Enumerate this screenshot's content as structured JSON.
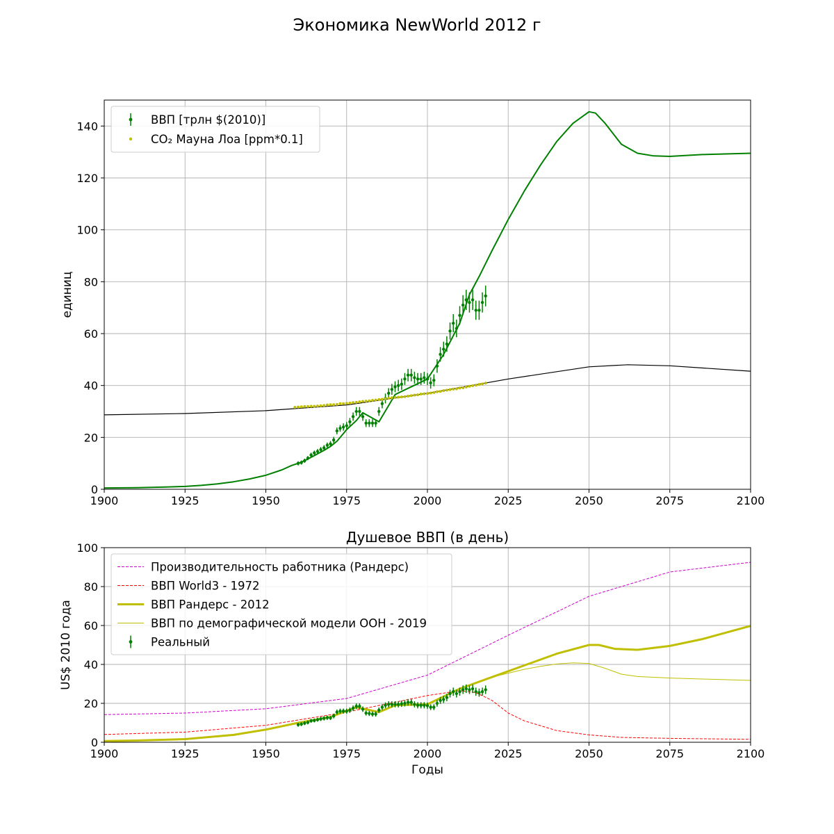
{
  "figure": {
    "title": "Экономика NewWorld 2012 г"
  },
  "chart_data": [
    {
      "type": "line",
      "title": "",
      "xlabel": "",
      "ylabel": "единиц",
      "xlim": [
        1900,
        2100
      ],
      "ylim": [
        0,
        150
      ],
      "xticks": [
        1900,
        1925,
        1950,
        1975,
        2000,
        2025,
        2050,
        2075,
        2100
      ],
      "yticks": [
        0,
        20,
        40,
        60,
        80,
        100,
        120,
        140
      ],
      "grid": true,
      "legend_position": "top-left",
      "series": [
        {
          "name": "",
          "kind": "line",
          "color": "#008000",
          "width": 2,
          "x": [
            1900,
            1910,
            1920,
            1925,
            1930,
            1935,
            1940,
            1945,
            1950,
            1955,
            1958,
            1960,
            1962,
            1965,
            1968,
            1970,
            1972,
            1975,
            1978,
            1980,
            1985,
            1990,
            2000,
            2005,
            2010,
            2013,
            2016,
            2020,
            2025,
            2030,
            2035,
            2040,
            2045,
            2050,
            2052,
            2055,
            2060,
            2065,
            2070,
            2075,
            2085,
            2100
          ],
          "y": [
            0.5,
            0.6,
            0.9,
            1.1,
            1.5,
            2.1,
            2.9,
            4.0,
            5.4,
            7.5,
            9.2,
            10.0,
            11.0,
            13.0,
            15.0,
            16.5,
            18.5,
            23.0,
            26.5,
            29.5,
            26.0,
            36.5,
            42.5,
            52.0,
            64.0,
            75.0,
            82.0,
            92.0,
            104.0,
            115.0,
            125.0,
            134.0,
            141.0,
            145.5,
            145.0,
            141.0,
            133.0,
            129.5,
            128.5,
            128.3,
            129.0,
            129.5
          ]
        },
        {
          "name": "",
          "kind": "line",
          "color": "#000000",
          "width": 1.2,
          "x": [
            1900,
            1925,
            1950,
            1975,
            2000,
            2025,
            2050,
            2062,
            2075,
            2100
          ],
          "y": [
            28.7,
            29.2,
            30.3,
            32.5,
            37.0,
            42.5,
            47.2,
            48.0,
            47.6,
            45.5
          ]
        },
        {
          "name": "ВВП [трлн $(2010)]",
          "kind": "errorbar",
          "color": "#008000",
          "x": [
            1960,
            1961,
            1962,
            1963,
            1964,
            1965,
            1966,
            1967,
            1968,
            1969,
            1970,
            1971,
            1972,
            1973,
            1974,
            1975,
            1976,
            1977,
            1978,
            1979,
            1980,
            1981,
            1982,
            1983,
            1984,
            1985,
            1986,
            1987,
            1988,
            1989,
            1990,
            1991,
            1992,
            1993,
            1994,
            1995,
            1996,
            1997,
            1998,
            1999,
            2000,
            2001,
            2002,
            2003,
            2004,
            2005,
            2006,
            2007,
            2008,
            2009,
            2010,
            2011,
            2012,
            2013,
            2014,
            2015,
            2016,
            2017,
            2018
          ],
          "y": [
            10.0,
            10.3,
            11.0,
            12.0,
            13.2,
            14.0,
            14.6,
            15.3,
            16.0,
            17.0,
            17.5,
            19.0,
            22.5,
            23.5,
            24.0,
            24.5,
            26.0,
            28.0,
            30.0,
            30.0,
            28.0,
            25.5,
            25.5,
            25.5,
            25.5,
            30.0,
            33.0,
            35.0,
            37.0,
            38.5,
            39.5,
            40.0,
            40.5,
            42.5,
            44.0,
            44.0,
            43.0,
            42.5,
            42.5,
            43.0,
            42.5,
            41.0,
            42.0,
            47.5,
            52.0,
            54.0,
            56.0,
            61.0,
            64.0,
            62.0,
            67.0,
            71.0,
            73.0,
            72.0,
            73.0,
            69.0,
            69.0,
            72.0,
            74.5
          ],
          "err": [
            0.8,
            0.8,
            0.8,
            0.8,
            0.9,
            0.9,
            0.9,
            1.0,
            1.0,
            1.0,
            1.1,
            1.2,
            1.3,
            1.3,
            1.4,
            1.4,
            1.5,
            1.6,
            1.7,
            1.7,
            1.6,
            1.5,
            1.5,
            1.5,
            1.5,
            1.7,
            1.8,
            1.9,
            2.0,
            2.1,
            2.1,
            2.2,
            2.2,
            2.3,
            2.4,
            2.4,
            2.3,
            2.3,
            2.3,
            2.3,
            2.3,
            2.2,
            2.3,
            2.6,
            2.8,
            2.9,
            3.0,
            3.3,
            3.5,
            3.4,
            3.6,
            3.8,
            3.9,
            3.9,
            3.9,
            3.7,
            3.7,
            3.9,
            4.0
          ]
        },
        {
          "name": "CO₂ Мауна Лоа [ppm*0.1]",
          "kind": "scatter",
          "color": "#bfbf00",
          "x": [
            1959,
            1960,
            1961,
            1962,
            1963,
            1964,
            1965,
            1966,
            1967,
            1968,
            1969,
            1970,
            1971,
            1972,
            1973,
            1974,
            1975,
            1976,
            1977,
            1978,
            1979,
            1980,
            1981,
            1982,
            1983,
            1984,
            1985,
            1986,
            1987,
            1988,
            1989,
            1990,
            1991,
            1992,
            1993,
            1994,
            1995,
            1996,
            1997,
            1998,
            1999,
            2000,
            2001,
            2002,
            2003,
            2004,
            2005,
            2006,
            2007,
            2008,
            2009,
            2010,
            2011,
            2012,
            2013,
            2014,
            2015,
            2016,
            2017,
            2018
          ],
          "y": [
            31.6,
            31.7,
            31.8,
            31.9,
            31.9,
            32.0,
            32.0,
            32.1,
            32.2,
            32.3,
            32.5,
            32.6,
            32.6,
            32.7,
            33.0,
            33.0,
            33.1,
            33.2,
            33.4,
            33.5,
            33.7,
            33.9,
            34.0,
            34.1,
            34.3,
            34.4,
            34.6,
            34.7,
            34.9,
            35.1,
            35.3,
            35.4,
            35.5,
            35.6,
            35.7,
            35.9,
            36.1,
            36.3,
            36.4,
            36.7,
            36.8,
            36.9,
            37.1,
            37.3,
            37.6,
            37.7,
            38.0,
            38.2,
            38.4,
            38.6,
            38.7,
            39.0,
            39.1,
            39.4,
            39.7,
            39.9,
            40.1,
            40.4,
            40.6,
            40.9
          ]
        }
      ]
    },
    {
      "type": "line",
      "title": "Душевое ВВП (в день)",
      "xlabel": "Годы",
      "ylabel": "US$ 2010 года",
      "xlim": [
        1900,
        2100
      ],
      "ylim": [
        0,
        100
      ],
      "xticks": [
        1900,
        1925,
        1950,
        1975,
        2000,
        2025,
        2050,
        2075,
        2100
      ],
      "yticks": [
        0,
        20,
        40,
        60,
        80,
        100
      ],
      "grid": true,
      "legend_position": "top-left",
      "series": [
        {
          "name": "Производительность работника (Рандерс)",
          "kind": "dashed",
          "color": "#cc00cc",
          "width": 1,
          "x": [
            1900,
            1925,
            1950,
            1975,
            2000,
            2025,
            2050,
            2075,
            2100
          ],
          "y": [
            14.2,
            15.0,
            17.2,
            22.5,
            34.5,
            55.0,
            75.0,
            87.5,
            92.5
          ]
        },
        {
          "name": "ВВП World3 - 1972",
          "kind": "dashed",
          "color": "#ff0000",
          "width": 1,
          "x": [
            1900,
            1925,
            1950,
            1975,
            2000,
            2010,
            2015,
            2020,
            2025,
            2030,
            2040,
            2050,
            2060,
            2075,
            2100
          ],
          "y": [
            4.0,
            5.2,
            8.7,
            15.5,
            24.0,
            26.5,
            25.5,
            21.5,
            15.0,
            11.0,
            6.0,
            3.8,
            2.5,
            2.0,
            1.5
          ]
        },
        {
          "name": "ВВП Рандерс - 2012",
          "kind": "line",
          "color": "#bfbf00",
          "width": 3,
          "x": [
            1900,
            1910,
            1925,
            1940,
            1950,
            1960,
            1970,
            1978,
            1985,
            1990,
            2000,
            2010,
            2020,
            2030,
            2040,
            2050,
            2053,
            2058,
            2065,
            2075,
            2085,
            2100
          ],
          "y": [
            0.6,
            0.9,
            1.6,
            3.8,
            6.5,
            10.0,
            13.0,
            18.0,
            15.5,
            19.0,
            19.5,
            27.5,
            33.5,
            39.5,
            45.5,
            50.0,
            50.0,
            48.0,
            47.5,
            49.5,
            53.0,
            59.8
          ]
        },
        {
          "name": "ВВП по демографической модели ООН - 2019",
          "kind": "line",
          "color": "#bfbf00",
          "width": 1,
          "x": [
            2010,
            2015,
            2020,
            2025,
            2030,
            2035,
            2040,
            2045,
            2050,
            2055,
            2060,
            2065,
            2075,
            2085,
            2100
          ],
          "y": [
            27.5,
            30.5,
            33.5,
            35.5,
            37.5,
            39.0,
            40.2,
            40.8,
            40.5,
            38.0,
            35.0,
            33.8,
            33.0,
            32.5,
            31.8
          ]
        },
        {
          "name": "Реальный",
          "kind": "errorbar",
          "color": "#008000",
          "x": [
            1960,
            1961,
            1962,
            1963,
            1964,
            1965,
            1966,
            1967,
            1968,
            1969,
            1970,
            1971,
            1972,
            1973,
            1974,
            1975,
            1976,
            1977,
            1978,
            1979,
            1980,
            1981,
            1982,
            1983,
            1984,
            1985,
            1986,
            1987,
            1988,
            1989,
            1990,
            1991,
            1992,
            1993,
            1994,
            1995,
            1996,
            1997,
            1998,
            1999,
            2000,
            2001,
            2002,
            2003,
            2004,
            2005,
            2006,
            2007,
            2008,
            2009,
            2010,
            2011,
            2012,
            2013,
            2014,
            2015,
            2016,
            2017,
            2018
          ],
          "y": [
            9.0,
            9.3,
            9.8,
            10.2,
            11.0,
            11.2,
            11.6,
            12.0,
            12.3,
            12.6,
            12.5,
            13.5,
            15.5,
            16.0,
            16.0,
            16.0,
            16.5,
            17.5,
            18.5,
            18.5,
            17.0,
            15.0,
            14.8,
            14.5,
            14.5,
            16.5,
            18.0,
            19.0,
            19.5,
            19.5,
            19.5,
            19.5,
            19.8,
            20.0,
            20.5,
            20.5,
            19.5,
            19.0,
            19.0,
            19.0,
            18.8,
            18.0,
            18.0,
            20.0,
            21.5,
            22.0,
            23.0,
            25.0,
            26.0,
            25.0,
            26.0,
            27.0,
            27.5,
            27.0,
            27.5,
            26.0,
            25.5,
            26.0,
            27.0
          ],
          "err": [
            1.0,
            1.0,
            1.0,
            1.0,
            1.0,
            1.0,
            1.0,
            1.1,
            1.1,
            1.1,
            1.1,
            1.2,
            1.3,
            1.3,
            1.3,
            1.3,
            1.4,
            1.4,
            1.5,
            1.5,
            1.4,
            1.3,
            1.3,
            1.3,
            1.3,
            1.4,
            1.5,
            1.5,
            1.6,
            1.6,
            1.6,
            1.6,
            1.6,
            1.6,
            1.7,
            1.7,
            1.6,
            1.6,
            1.6,
            1.6,
            1.6,
            1.5,
            1.5,
            1.7,
            1.8,
            1.8,
            1.9,
            2.0,
            2.1,
            2.0,
            2.1,
            2.2,
            2.2,
            2.2,
            2.2,
            2.1,
            2.1,
            2.1,
            2.2
          ]
        }
      ]
    }
  ]
}
